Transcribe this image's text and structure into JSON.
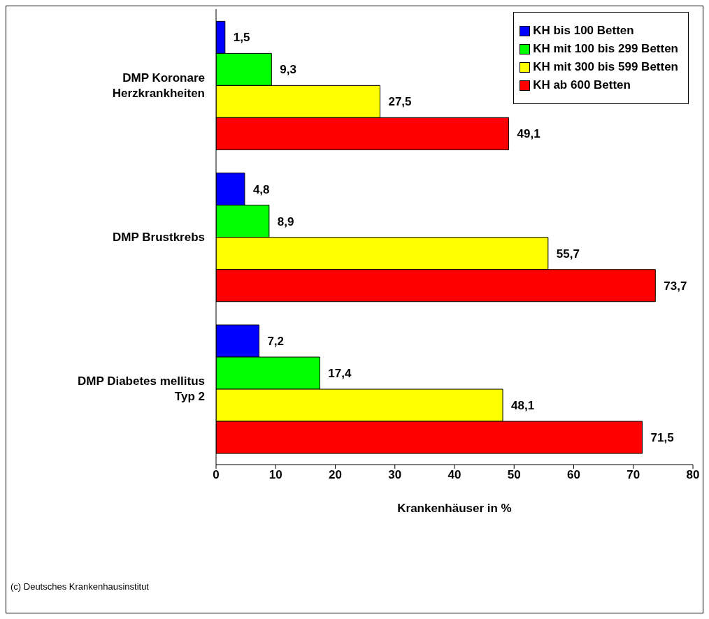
{
  "chart_data": {
    "type": "bar",
    "orientation": "horizontal",
    "categories": [
      "DMP Koronare Herzkrankheiten",
      "DMP Brustkrebs",
      "DMP Diabetes mellitus Typ 2"
    ],
    "series": [
      {
        "name": "KH bis 100 Betten",
        "color": "#0000ff",
        "values": [
          1.5,
          4.8,
          7.2
        ],
        "value_labels": [
          "1,5",
          "4,8",
          "7,2"
        ]
      },
      {
        "name": "KH mit 100 bis 299 Betten",
        "color": "#00ff00",
        "values": [
          9.3,
          8.9,
          17.4
        ],
        "value_labels": [
          "9,3",
          "8,9",
          "17,4"
        ]
      },
      {
        "name": "KH mit 300 bis 599 Betten",
        "color": "#ffff00",
        "values": [
          27.5,
          55.7,
          48.1
        ],
        "value_labels": [
          "27,5",
          "55,7",
          "48,1"
        ]
      },
      {
        "name": "KH ab 600 Betten",
        "color": "#ff0000",
        "values": [
          49.1,
          73.7,
          71.5
        ],
        "value_labels": [
          "49,1",
          "73,7",
          "71,5"
        ]
      }
    ],
    "xlim": [
      0,
      80
    ],
    "xticks": [
      0,
      10,
      20,
      30,
      40,
      50,
      60,
      70,
      80
    ],
    "xlabel": "Krankenhäuser in %",
    "legend": "top right",
    "grid": false,
    "annotations": [
      "(c) Deutsches Krankenhausinstitut"
    ]
  }
}
